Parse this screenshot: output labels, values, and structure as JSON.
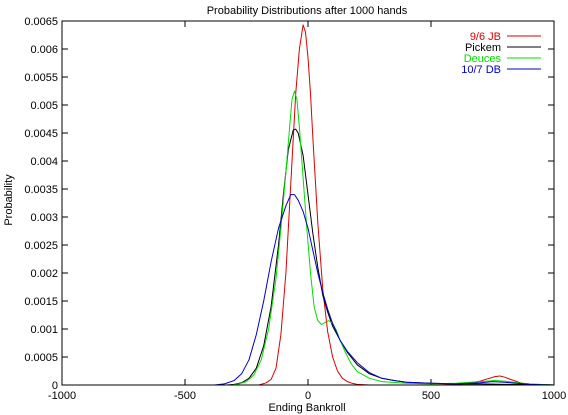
{
  "chart_data": {
    "type": "line",
    "title": "Probability Distributions after 1000 hands",
    "xlabel": "Ending Bankroll",
    "ylabel": "Probability",
    "xlim": [
      -1000,
      1000
    ],
    "ylim": [
      0,
      0.0065
    ],
    "xticks": [
      -1000,
      -500,
      0,
      500,
      1000
    ],
    "xtick_labels": [
      "-1000",
      "-500",
      "0",
      "500",
      "1000"
    ],
    "yticks": [
      0,
      0.0005,
      0.001,
      0.0015,
      0.002,
      0.0025,
      0.003,
      0.0035,
      0.004,
      0.0045,
      0.005,
      0.0055,
      0.006,
      0.0065
    ],
    "ytick_labels": [
      "0",
      "0.0005",
      "0.001",
      "0.0015",
      "0.002",
      "0.0025",
      "0.003",
      "0.0035",
      "0.004",
      "0.0045",
      "0.005",
      "0.0055",
      "0.006",
      "0.0065"
    ],
    "grid": false,
    "legend_position": "top-right",
    "series": [
      {
        "name": "9/6 JB",
        "color": "#dd0000",
        "x": [
          -1000,
          -200,
          -170,
          -150,
          -130,
          -110,
          -90,
          -70,
          -50,
          -35,
          -20,
          -10,
          0,
          10,
          20,
          40,
          60,
          80,
          100,
          120,
          140,
          160,
          180,
          200,
          250,
          300,
          400,
          500,
          600,
          650,
          700,
          730,
          760,
          780,
          800,
          830,
          870,
          920,
          1000
        ],
        "y": [
          0,
          0,
          4e-05,
          0.0001,
          0.0003,
          0.0009,
          0.002,
          0.0036,
          0.0052,
          0.006,
          0.00643,
          0.0063,
          0.00585,
          0.0052,
          0.0044,
          0.0029,
          0.0017,
          0.00095,
          0.0005,
          0.00025,
          0.00012,
          6e-05,
          3e-05,
          1e-05,
          0,
          0,
          0,
          0,
          1e-05,
          3e-05,
          7e-05,
          0.00011,
          0.00015,
          0.00016,
          0.00014,
          9e-05,
          3e-05,
          1e-05,
          0
        ]
      },
      {
        "name": "Pickem",
        "color": "#000000",
        "x": [
          -1000,
          -330,
          -300,
          -270,
          -240,
          -210,
          -180,
          -150,
          -120,
          -100,
          -80,
          -60,
          -50,
          -40,
          -20,
          0,
          20,
          40,
          60,
          80,
          100,
          130,
          160,
          200,
          250,
          300,
          350,
          400,
          500,
          600,
          700,
          800,
          900,
          1000
        ],
        "y": [
          0,
          0,
          1e-05,
          4e-05,
          0.00012,
          0.0003,
          0.0007,
          0.0014,
          0.0025,
          0.0034,
          0.0042,
          0.00455,
          0.00457,
          0.0045,
          0.0041,
          0.0034,
          0.0027,
          0.0021,
          0.0016,
          0.0013,
          0.00105,
          0.0008,
          0.00058,
          0.00036,
          0.0002,
          0.00012,
          8e-05,
          5e-05,
          3e-05,
          2e-05,
          2e-05,
          1e-05,
          1e-05,
          0
        ]
      },
      {
        "name": "Deuces",
        "color": "#00dd00",
        "x": [
          -1000,
          -310,
          -280,
          -250,
          -220,
          -190,
          -160,
          -130,
          -110,
          -90,
          -75,
          -65,
          -55,
          -45,
          -35,
          -20,
          -5,
          10,
          25,
          40,
          55,
          70,
          85,
          100,
          115,
          130,
          150,
          175,
          200,
          250,
          300,
          400,
          500,
          600,
          700,
          760,
          800,
          850,
          900,
          1000
        ],
        "y": [
          0,
          0,
          2e-05,
          6e-05,
          0.00018,
          0.00045,
          0.001,
          0.0019,
          0.0028,
          0.0038,
          0.0046,
          0.0051,
          0.00525,
          0.0051,
          0.0046,
          0.0037,
          0.0028,
          0.002,
          0.0014,
          0.00115,
          0.00108,
          0.00112,
          0.00115,
          0.0011,
          0.00098,
          0.0008,
          0.0006,
          0.00038,
          0.00024,
          0.00012,
          6e-05,
          3e-05,
          2e-05,
          3e-05,
          6e-05,
          8e-05,
          7e-05,
          4e-05,
          2e-05,
          0
        ]
      },
      {
        "name": "10/7 DB",
        "color": "#0000cc",
        "x": [
          -1000,
          -380,
          -340,
          -300,
          -270,
          -240,
          -210,
          -180,
          -150,
          -120,
          -90,
          -70,
          -55,
          -40,
          -20,
          0,
          20,
          40,
          60,
          80,
          100,
          130,
          160,
          200,
          250,
          300,
          350,
          400,
          500,
          600,
          700,
          750,
          800,
          850,
          900,
          1000
        ],
        "y": [
          0,
          0,
          2e-05,
          8e-05,
          0.0002,
          0.00045,
          0.0009,
          0.0015,
          0.0022,
          0.0028,
          0.0032,
          0.0034,
          0.0034,
          0.0033,
          0.0031,
          0.0028,
          0.0024,
          0.002,
          0.00165,
          0.00135,
          0.0011,
          0.0008,
          0.0006,
          0.0004,
          0.00022,
          0.00012,
          8e-05,
          5e-05,
          3e-05,
          2e-05,
          4e-05,
          6e-05,
          5e-05,
          3e-05,
          1e-05,
          0
        ]
      }
    ]
  }
}
